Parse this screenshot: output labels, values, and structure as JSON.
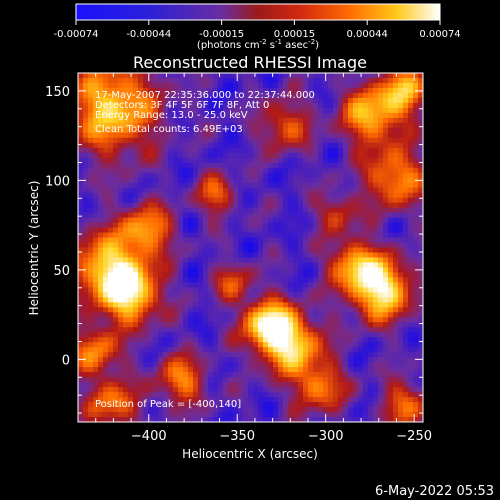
{
  "chart_data": {
    "type": "heatmap",
    "title": "Reconstructed RHESSI Image",
    "xlabel": "Heliocentric X (arcsec)",
    "ylabel": "Heliocentric Y (arcsec)",
    "xlim": [
      -440,
      -245
    ],
    "ylim": [
      -35,
      160
    ],
    "xticks": [
      -400,
      -350,
      -300,
      -250
    ],
    "yticks": [
      0,
      50,
      100,
      150
    ],
    "colorbar": {
      "ticks": [
        "-0.00074",
        "-0.00044",
        "-0.00015",
        "0.00015",
        "0.00044",
        "0.00074"
      ],
      "range": [
        -0.00074,
        0.00074
      ],
      "units_line1": "(photons cm",
      "units_exp1": "-2",
      "units_line2": " s",
      "units_exp2": "-1",
      "units_line3": " asec",
      "units_exp3": "-2",
      "units_close": ")"
    },
    "annotations": [
      "17-May-2007 22:35:36.000 to 22:37:44.000",
      "Detectors: 3F 4F 5F 6F 7F 8F, Att 0",
      "Energy Range: 13.0 - 25.0 keV",
      "Clean   Total counts: 6.49E+03"
    ],
    "peak_label": "Position of Peak = [-400,140]",
    "peak": [
      -400,
      140
    ],
    "grid": false,
    "colormap": [
      "#000000",
      "#0000ff",
      "#6a2da0",
      "#b01818",
      "#ff6a00",
      "#ffd21e",
      "#ffffff"
    ]
  },
  "footer": {
    "timestamp": "6-May-2022 05:53"
  }
}
